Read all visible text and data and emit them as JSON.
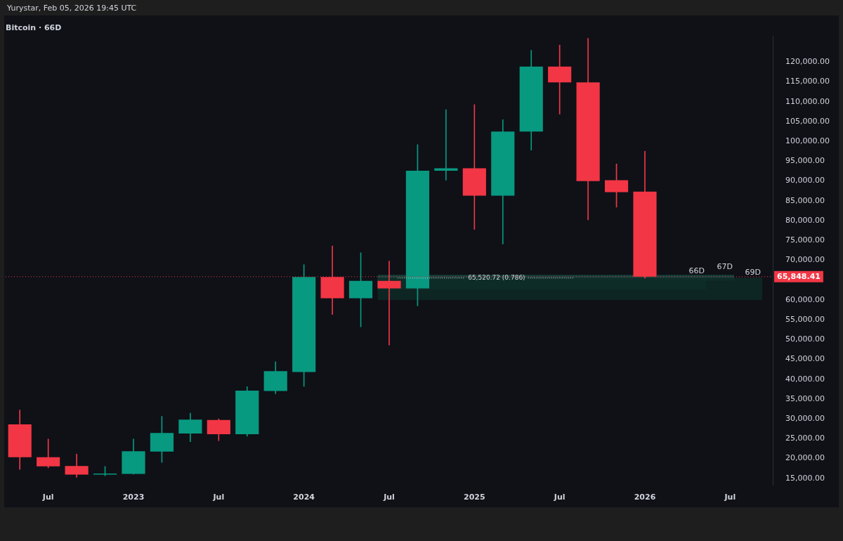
{
  "chart_data": {
    "type": "candlestick",
    "title": "Bitcoin · 66D",
    "annotations": [
      "Yurystar, Feb 05, 2026 19:45 UTC",
      {
        "text": "65,520.72 (0.786)",
        "y": 65520.72
      }
    ],
    "categories": [
      null,
      "Jul",
      null,
      null,
      "2023",
      null,
      null,
      "Jul",
      null,
      null,
      "2024",
      null,
      null,
      "Jul",
      null,
      null,
      "2025",
      null,
      null,
      "Jul",
      null,
      null,
      "2026",
      null,
      null,
      "Jul",
      null
    ],
    "ohlc": [
      [
        28600,
        32200,
        17200,
        20300
      ],
      [
        20300,
        24900,
        17600,
        18000
      ],
      [
        18100,
        21100,
        15200,
        15900
      ],
      [
        15900,
        18000,
        15600,
        16200
      ],
      [
        16100,
        24900,
        16000,
        21800
      ],
      [
        21700,
        30600,
        19000,
        26400
      ],
      [
        26300,
        31400,
        24200,
        29800
      ],
      [
        29700,
        30000,
        24500,
        26100
      ],
      [
        26100,
        38100,
        25600,
        37100
      ],
      [
        37000,
        44400,
        36300,
        42000
      ],
      [
        41800,
        68900,
        38200,
        65800
      ],
      [
        65800,
        73600,
        56300,
        60400
      ],
      [
        60400,
        71900,
        53200,
        64800
      ],
      [
        64800,
        69800,
        48600,
        62900
      ],
      [
        62900,
        99200,
        58500,
        92600
      ],
      [
        92600,
        108000,
        90200,
        93200
      ],
      [
        93200,
        109300,
        77800,
        86300
      ],
      [
        86300,
        105500,
        74100,
        102500
      ],
      [
        102500,
        123000,
        97800,
        118900
      ],
      [
        118900,
        124300,
        106900,
        114900
      ],
      [
        114900,
        126000,
        80200,
        90000
      ],
      [
        90200,
        94300,
        83400,
        87200
      ],
      [
        87300,
        97500,
        65500,
        65848.41
      ],
      null,
      null,
      null,
      null
    ],
    "colors": [
      "#f23645",
      "#f23645",
      "#f23645",
      "#089981",
      "#089981",
      "#089981",
      "#089981",
      "#f23645",
      "#089981",
      "#089981",
      "#089981",
      "#f23645",
      "#089981",
      "#f23645",
      "#089981",
      "#089981",
      "#f23645",
      "#089981",
      "#089981",
      "#f23645",
      "#f23645",
      "#f23645",
      "#f23645",
      null,
      null,
      null,
      null
    ],
    "ylim": [
      13200,
      126600
    ],
    "yticks": [
      {
        "value": 15000,
        "label": "15,000.00"
      },
      {
        "value": 20000,
        "label": "20,000.00"
      },
      {
        "value": 25000,
        "label": "25,000.00"
      },
      {
        "value": 30000,
        "label": "30,000.00"
      },
      {
        "value": 35000,
        "label": "35,000.00"
      },
      {
        "value": 40000,
        "label": "40,000.00"
      },
      {
        "value": 45000,
        "label": "45,000.00"
      },
      {
        "value": 50000,
        "label": "50,000.00"
      },
      {
        "value": 55000,
        "label": "55,000.00"
      },
      {
        "value": 60000,
        "label": "60,000.00"
      },
      {
        "value": 70000,
        "label": "70,000.00"
      },
      {
        "value": 75000,
        "label": "75,000.00"
      },
      {
        "value": 80000,
        "label": "80,000.00"
      },
      {
        "value": 85000,
        "label": "85,000.00"
      },
      {
        "value": 90000,
        "label": "90,000.00"
      },
      {
        "value": 95000,
        "label": "95,000.00"
      },
      {
        "value": 100000,
        "label": "100,000.00"
      },
      {
        "value": 105000,
        "label": "105,000.00"
      },
      {
        "value": 110000,
        "label": "110,000.00"
      },
      {
        "value": 115000,
        "label": "115,000.00"
      },
      {
        "value": 120000,
        "label": "120,000.00"
      }
    ],
    "ref_lines": [
      {
        "axis": "y",
        "value": 65848.41,
        "label": "65,848.41",
        "color": "#f23645"
      }
    ],
    "bands": [
      {
        "axis": "y",
        "from": 62600,
        "to": 65800,
        "label": "66D",
        "color": "#123f37"
      },
      {
        "axis": "y",
        "from": 64900,
        "to": 66300,
        "label": "67D",
        "color": "#17473f"
      },
      {
        "axis": "y",
        "from": 60000,
        "to": 65600,
        "label": "69D",
        "color": "#0e2a26"
      }
    ]
  }
}
